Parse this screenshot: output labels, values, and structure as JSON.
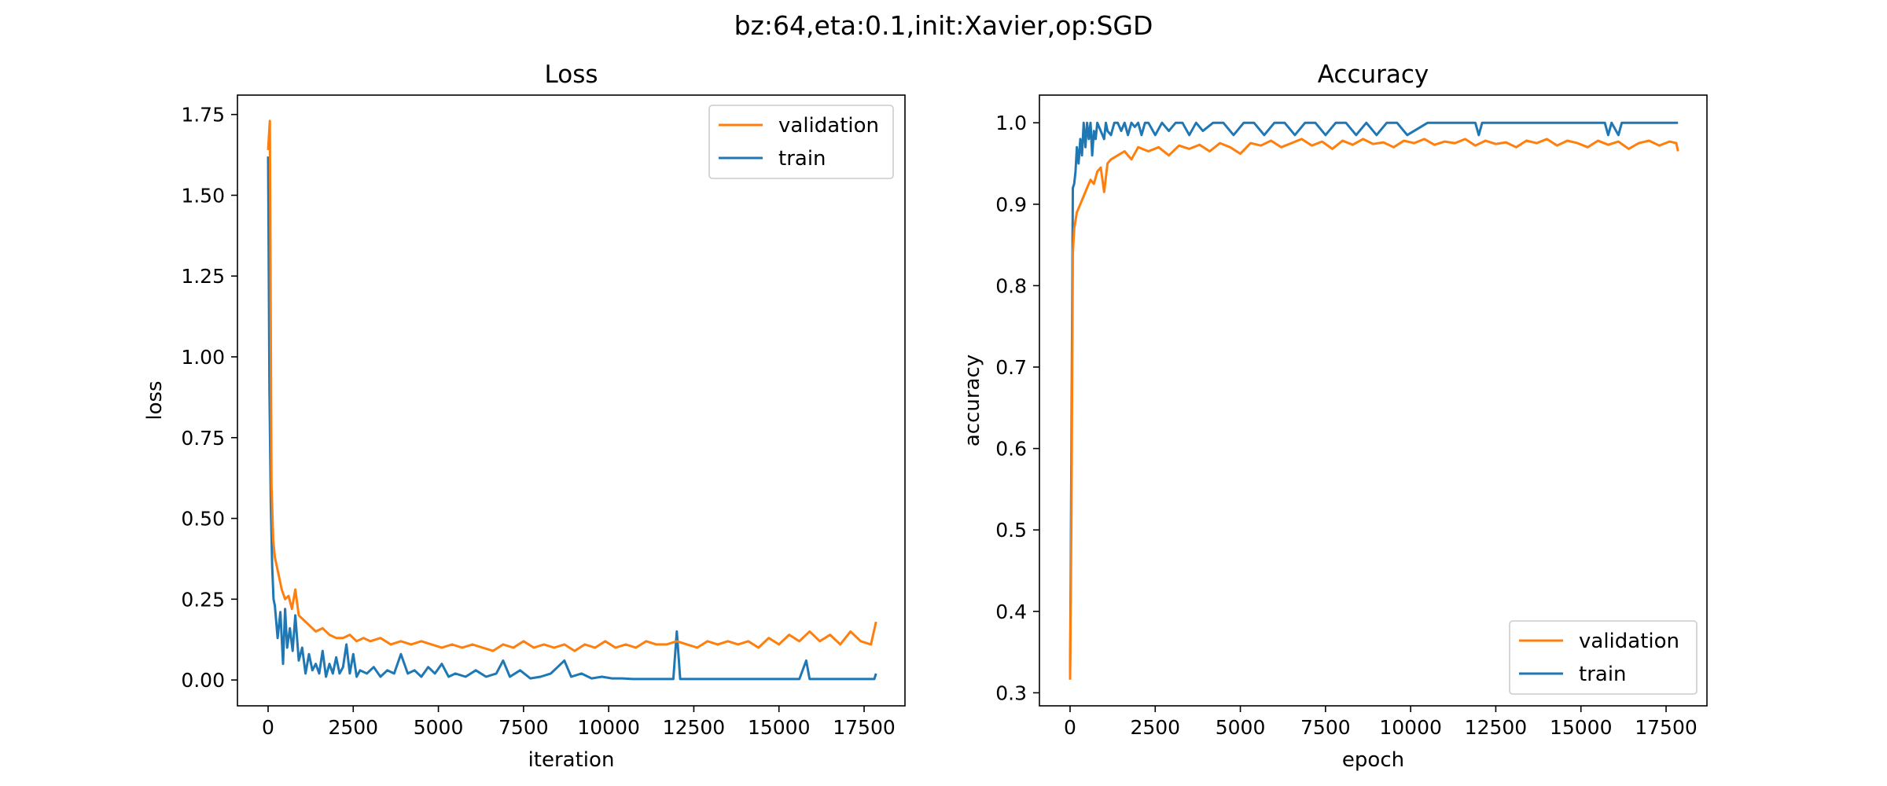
{
  "figure": {
    "suptitle": "bz:64,eta:0.1,init:Xavier,op:SGD"
  },
  "colors": {
    "validation": "#ff7f0e",
    "train": "#1f77b4",
    "axes": "#000000",
    "background": "#ffffff",
    "legend_border": "#cccccc"
  },
  "chart_data": [
    {
      "type": "line",
      "title": "Loss",
      "xlabel": "iteration",
      "ylabel": "loss",
      "xlim": [
        -900,
        18700
      ],
      "ylim": [
        -0.08,
        1.81
      ],
      "xticks": [
        0,
        2500,
        5000,
        7500,
        10000,
        12500,
        15000,
        17500
      ],
      "yticks": [
        0.0,
        0.25,
        0.5,
        0.75,
        1.0,
        1.25,
        1.5,
        1.75
      ],
      "xtick_labels": [
        "0",
        "2500",
        "5000",
        "7500",
        "10000",
        "12500",
        "15000",
        "17500"
      ],
      "ytick_labels": [
        "0.00",
        "0.25",
        "0.50",
        "0.75",
        "1.00",
        "1.25",
        "1.50",
        "1.75"
      ],
      "legend": "upper right",
      "grid": false,
      "series": [
        {
          "name": "validation",
          "x": [
            0,
            50,
            100,
            150,
            200,
            300,
            400,
            500,
            600,
            700,
            800,
            900,
            1000,
            1200,
            1400,
            1600,
            1800,
            2000,
            2200,
            2400,
            2600,
            2800,
            3000,
            3300,
            3600,
            3900,
            4200,
            4500,
            4800,
            5100,
            5400,
            5700,
            6000,
            6300,
            6600,
            6900,
            7200,
            7500,
            7800,
            8100,
            8400,
            8700,
            9000,
            9300,
            9600,
            9900,
            10200,
            10500,
            10800,
            11100,
            11400,
            11700,
            12000,
            12300,
            12600,
            12900,
            13200,
            13500,
            13800,
            14100,
            14400,
            14700,
            15000,
            15300,
            15600,
            15900,
            16200,
            16500,
            16800,
            17100,
            17400,
            17700,
            17850
          ],
          "values": [
            1.64,
            1.73,
            0.6,
            0.43,
            0.38,
            0.33,
            0.28,
            0.25,
            0.26,
            0.22,
            0.28,
            0.2,
            0.19,
            0.17,
            0.15,
            0.16,
            0.14,
            0.13,
            0.13,
            0.14,
            0.12,
            0.13,
            0.12,
            0.13,
            0.11,
            0.12,
            0.11,
            0.12,
            0.11,
            0.1,
            0.11,
            0.1,
            0.11,
            0.1,
            0.09,
            0.11,
            0.1,
            0.12,
            0.1,
            0.11,
            0.1,
            0.11,
            0.09,
            0.11,
            0.1,
            0.12,
            0.1,
            0.11,
            0.1,
            0.12,
            0.11,
            0.11,
            0.12,
            0.11,
            0.1,
            0.12,
            0.11,
            0.12,
            0.11,
            0.12,
            0.1,
            0.13,
            0.11,
            0.14,
            0.12,
            0.15,
            0.12,
            0.14,
            0.11,
            0.15,
            0.12,
            0.11,
            0.18
          ]
        },
        {
          "name": "train",
          "x": [
            0,
            40,
            80,
            120,
            160,
            200,
            280,
            360,
            440,
            500,
            560,
            640,
            720,
            800,
            900,
            1000,
            1100,
            1200,
            1300,
            1400,
            1500,
            1600,
            1700,
            1800,
            1900,
            2000,
            2100,
            2200,
            2300,
            2400,
            2500,
            2600,
            2700,
            2900,
            3100,
            3300,
            3500,
            3700,
            3900,
            4100,
            4300,
            4500,
            4700,
            4900,
            5100,
            5300,
            5500,
            5800,
            6100,
            6400,
            6700,
            6900,
            7100,
            7400,
            7700,
            8000,
            8300,
            8500,
            8700,
            8900,
            9200,
            9500,
            9800,
            10100,
            10400,
            10700,
            11000,
            11300,
            11600,
            11900,
            12000,
            12100,
            12400,
            12800,
            13200,
            13600,
            14000,
            14400,
            14800,
            15200,
            15600,
            15800,
            15900,
            16200,
            16600,
            17000,
            17400,
            17800,
            17850
          ],
          "values": [
            1.62,
            0.9,
            0.55,
            0.35,
            0.25,
            0.23,
            0.13,
            0.21,
            0.05,
            0.22,
            0.1,
            0.16,
            0.09,
            0.2,
            0.06,
            0.1,
            0.02,
            0.08,
            0.03,
            0.05,
            0.02,
            0.09,
            0.01,
            0.05,
            0.02,
            0.07,
            0.02,
            0.04,
            0.11,
            0.02,
            0.08,
            0.01,
            0.03,
            0.02,
            0.04,
            0.01,
            0.03,
            0.02,
            0.08,
            0.02,
            0.03,
            0.01,
            0.04,
            0.02,
            0.05,
            0.01,
            0.02,
            0.01,
            0.03,
            0.01,
            0.02,
            0.06,
            0.01,
            0.03,
            0.005,
            0.01,
            0.02,
            0.04,
            0.06,
            0.01,
            0.02,
            0.005,
            0.01,
            0.005,
            0.005,
            0.003,
            0.003,
            0.003,
            0.003,
            0.003,
            0.15,
            0.003,
            0.003,
            0.003,
            0.003,
            0.003,
            0.003,
            0.003,
            0.003,
            0.003,
            0.003,
            0.06,
            0.003,
            0.003,
            0.003,
            0.003,
            0.003,
            0.003,
            0.02
          ]
        }
      ]
    },
    {
      "type": "line",
      "title": "Accuracy",
      "xlabel": "epoch",
      "ylabel": "accuracy",
      "xlim": [
        -900,
        18700
      ],
      "ylim": [
        0.284,
        1.034
      ],
      "xticks": [
        0,
        2500,
        5000,
        7500,
        10000,
        12500,
        15000,
        17500
      ],
      "yticks": [
        0.3,
        0.4,
        0.5,
        0.6,
        0.7,
        0.8,
        0.9,
        1.0
      ],
      "xtick_labels": [
        "0",
        "2500",
        "5000",
        "7500",
        "10000",
        "12500",
        "15000",
        "17500"
      ],
      "ytick_labels": [
        "0.3",
        "0.4",
        "0.5",
        "0.6",
        "0.7",
        "0.8",
        "0.9",
        "1.0"
      ],
      "legend": "lower right",
      "grid": false,
      "series": [
        {
          "name": "validation",
          "x": [
            0,
            40,
            80,
            120,
            160,
            200,
            300,
            400,
            500,
            600,
            700,
            800,
            900,
            1000,
            1100,
            1200,
            1400,
            1600,
            1800,
            2000,
            2300,
            2600,
            2900,
            3200,
            3500,
            3800,
            4100,
            4400,
            4700,
            5000,
            5300,
            5600,
            5900,
            6200,
            6500,
            6800,
            7100,
            7400,
            7700,
            8000,
            8300,
            8600,
            8900,
            9200,
            9500,
            9800,
            10100,
            10400,
            10700,
            11000,
            11300,
            11600,
            11900,
            12200,
            12500,
            12800,
            13100,
            13400,
            13700,
            14000,
            14300,
            14600,
            14900,
            15200,
            15500,
            15800,
            16100,
            16400,
            16700,
            17000,
            17300,
            17600,
            17800,
            17850
          ],
          "values": [
            0.316,
            0.52,
            0.84,
            0.87,
            0.88,
            0.89,
            0.9,
            0.91,
            0.92,
            0.93,
            0.925,
            0.94,
            0.945,
            0.915,
            0.95,
            0.955,
            0.96,
            0.965,
            0.955,
            0.97,
            0.965,
            0.97,
            0.96,
            0.972,
            0.968,
            0.973,
            0.965,
            0.975,
            0.97,
            0.962,
            0.975,
            0.972,
            0.978,
            0.97,
            0.975,
            0.98,
            0.972,
            0.977,
            0.968,
            0.978,
            0.973,
            0.98,
            0.974,
            0.976,
            0.97,
            0.978,
            0.975,
            0.98,
            0.973,
            0.977,
            0.975,
            0.98,
            0.972,
            0.978,
            0.974,
            0.976,
            0.97,
            0.978,
            0.975,
            0.98,
            0.972,
            0.978,
            0.975,
            0.97,
            0.978,
            0.973,
            0.977,
            0.968,
            0.975,
            0.978,
            0.972,
            0.977,
            0.975,
            0.965
          ]
        },
        {
          "name": "train",
          "x": [
            0,
            40,
            80,
            120,
            160,
            200,
            250,
            300,
            350,
            400,
            450,
            500,
            550,
            600,
            650,
            700,
            750,
            800,
            900,
            1000,
            1050,
            1100,
            1200,
            1300,
            1400,
            1500,
            1600,
            1700,
            1800,
            1900,
            2000,
            2100,
            2200,
            2300,
            2500,
            2700,
            2900,
            3100,
            3300,
            3500,
            3700,
            3900,
            4200,
            4500,
            4800,
            5100,
            5400,
            5700,
            6000,
            6300,
            6600,
            6900,
            7200,
            7500,
            7800,
            8100,
            8400,
            8700,
            9000,
            9300,
            9600,
            9900,
            10500,
            11000,
            11500,
            11900,
            12000,
            12100,
            13000,
            14000,
            15000,
            15700,
            15800,
            15900,
            16100,
            16200,
            16300,
            17000,
            17850
          ],
          "values": [
            0.32,
            0.6,
            0.92,
            0.925,
            0.94,
            0.97,
            0.95,
            0.98,
            0.96,
            1.0,
            0.97,
            1.0,
            0.98,
            1.0,
            0.96,
            0.99,
            0.98,
            1.0,
            0.99,
            0.98,
            1.0,
            0.99,
            0.985,
            1.0,
            1.0,
            0.99,
            1.0,
            0.985,
            1.0,
            0.995,
            1.0,
            0.985,
            1.0,
            1.0,
            0.985,
            1.0,
            0.99,
            1.0,
            1.0,
            0.985,
            1.0,
            0.99,
            1.0,
            1.0,
            0.985,
            1.0,
            1.0,
            0.985,
            1.0,
            1.0,
            0.985,
            1.0,
            1.0,
            0.985,
            1.0,
            1.0,
            0.985,
            1.0,
            0.985,
            1.0,
            1.0,
            0.985,
            1.0,
            1.0,
            1.0,
            1.0,
            0.985,
            1.0,
            1.0,
            1.0,
            1.0,
            1.0,
            0.985,
            1.0,
            0.985,
            1.0,
            1.0,
            1.0,
            1.0
          ]
        }
      ]
    }
  ]
}
